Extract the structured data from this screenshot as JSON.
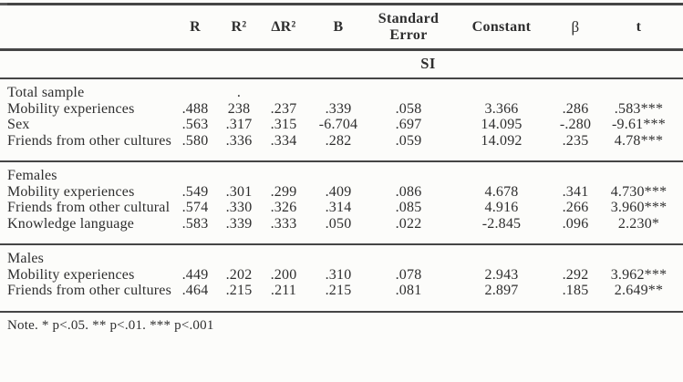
{
  "table": {
    "columns": [
      "",
      "R",
      "R²",
      "ΔR²",
      "B",
      "Standard\nError",
      "Constant",
      "β",
      "t"
    ],
    "span_header": "SI",
    "blocks": [
      {
        "rows": [
          {
            "label": "Total sample",
            "values": [
              "",
              ".",
              "",
              "",
              "",
              "",
              "",
              ""
            ]
          },
          {
            "label": "Mobility experiences",
            "values": [
              ".488",
              "238",
              ".237",
              ".339",
              ".058",
              "3.366",
              ".286",
              ".583***"
            ]
          },
          {
            "label": "Sex",
            "values": [
              ".563",
              ".317",
              ".315",
              "-6.704",
              ".697",
              "14.095",
              "-.280",
              "-9.61***"
            ]
          },
          {
            "label": "Friends from other cultures",
            "values": [
              ".580",
              ".336",
              ".334",
              ".282",
              ".059",
              "14.092",
              ".235",
              "4.78***"
            ]
          }
        ]
      },
      {
        "rows": [
          {
            "label": "Females",
            "values": [
              "",
              "",
              "",
              "",
              "",
              "",
              "",
              ""
            ]
          },
          {
            "label": "Mobility experiences",
            "values": [
              ".549",
              ".301",
              ".299",
              ".409",
              ".086",
              "4.678",
              ".341",
              "4.730***"
            ]
          },
          {
            "label": "Friends from other cultural",
            "values": [
              ".574",
              ".330",
              ".326",
              ".314",
              ".085",
              "4.916",
              ".266",
              "3.960***"
            ]
          },
          {
            "label": "Knowledge language",
            "values": [
              ".583",
              ".339",
              ".333",
              ".050",
              ".022",
              "-2.845",
              ".096",
              "2.230*"
            ]
          }
        ]
      },
      {
        "rows": [
          {
            "label": "Males",
            "values": [
              "",
              "",
              "",
              "",
              "",
              "",
              "",
              ""
            ]
          },
          {
            "label": "Mobility experiences",
            "values": [
              ".449",
              ".202",
              ".200",
              ".310",
              ".078",
              "2.943",
              ".292",
              "3.962***"
            ]
          },
          {
            "label": "Friends from other cultures",
            "values": [
              ".464",
              ".215",
              ".211",
              ".215",
              ".081",
              "2.897",
              ".185",
              "2.649**"
            ]
          }
        ]
      }
    ],
    "note": "Note. * p<.05. ** p<.01. *** p<.001"
  }
}
